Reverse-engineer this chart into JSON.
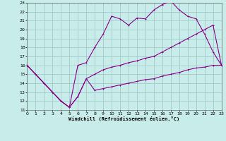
{
  "xlabel": "Windchill (Refroidissement éolien,°C)",
  "bg_color": "#c8ecea",
  "grid_color": "#a0cccc",
  "line_color": "#880088",
  "xlim": [
    0,
    23
  ],
  "ylim": [
    11,
    23
  ],
  "xticks": [
    0,
    1,
    2,
    3,
    4,
    5,
    6,
    7,
    8,
    9,
    10,
    11,
    12,
    13,
    14,
    15,
    16,
    17,
    18,
    19,
    20,
    21,
    22,
    23
  ],
  "yticks": [
    11,
    12,
    13,
    14,
    15,
    16,
    17,
    18,
    19,
    20,
    21,
    22,
    23
  ],
  "line_upper_x": [
    0,
    1,
    2,
    3,
    4,
    5,
    6,
    7,
    8,
    9,
    10,
    11,
    12,
    13,
    14,
    15,
    16,
    17,
    18,
    19,
    20,
    21,
    22,
    23
  ],
  "line_upper_y": [
    16,
    15,
    14,
    13,
    12,
    11.3,
    16,
    16.3,
    18,
    19.5,
    21.5,
    21.2,
    20.5,
    21.3,
    21.2,
    22.2,
    22.8,
    23.2,
    22.2,
    21.5,
    21.2,
    19.5,
    17.5,
    16.0
  ],
  "line_mid_x": [
    0,
    1,
    2,
    3,
    4,
    5,
    6,
    7,
    8,
    9,
    10,
    11,
    12,
    13,
    14,
    15,
    16,
    17,
    18,
    19,
    20,
    21,
    22,
    23
  ],
  "line_mid_y": [
    16,
    15,
    14,
    13,
    12,
    11.3,
    12.5,
    14.5,
    15,
    15.5,
    15.8,
    16,
    16.3,
    16.5,
    16.8,
    17,
    17.5,
    18,
    18.5,
    19,
    19.5,
    20,
    20.5,
    16
  ],
  "line_lower_x": [
    0,
    1,
    2,
    3,
    4,
    5,
    6,
    7,
    8,
    9,
    10,
    11,
    12,
    13,
    14,
    15,
    16,
    17,
    18,
    19,
    20,
    21,
    22,
    23
  ],
  "line_lower_y": [
    16,
    15,
    14,
    13,
    12,
    11.3,
    12.5,
    14.5,
    13.2,
    13.4,
    13.6,
    13.8,
    14.0,
    14.2,
    14.4,
    14.5,
    14.8,
    15.0,
    15.2,
    15.5,
    15.7,
    15.8,
    16.0,
    16.0
  ]
}
